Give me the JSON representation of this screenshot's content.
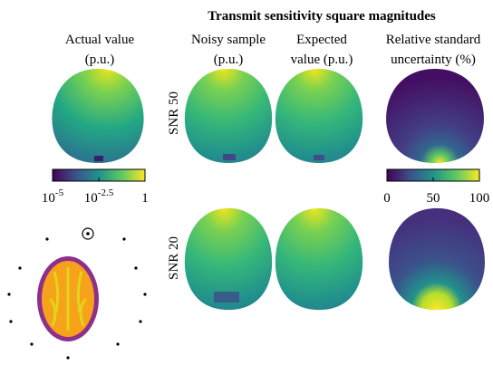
{
  "title": "Transmit sensitivity square magnitudes",
  "column_headers": [
    [
      "Actual value",
      "(p.u.)"
    ],
    [
      "Noisy sample",
      "(p.u.)"
    ],
    [
      "Expected",
      "value (p.u.)"
    ],
    [
      "Relative standard",
      "uncertainty (%)"
    ]
  ],
  "row_labels": [
    "SNR 50",
    "SNR 20"
  ],
  "colorbars": [
    {
      "scale": "log",
      "xlim": [
        1e-05,
        1
      ],
      "xticks": [
        {
          "value": 1e-05,
          "base": "10",
          "exponent": "-5"
        },
        {
          "value": 0.0031623,
          "base": "10",
          "exponent": "-2.5"
        },
        1
      ]
    },
    {
      "scale": "linear",
      "xlim": [
        0,
        100
      ],
      "xticks": [
        0,
        50,
        100
      ]
    }
  ]
}
